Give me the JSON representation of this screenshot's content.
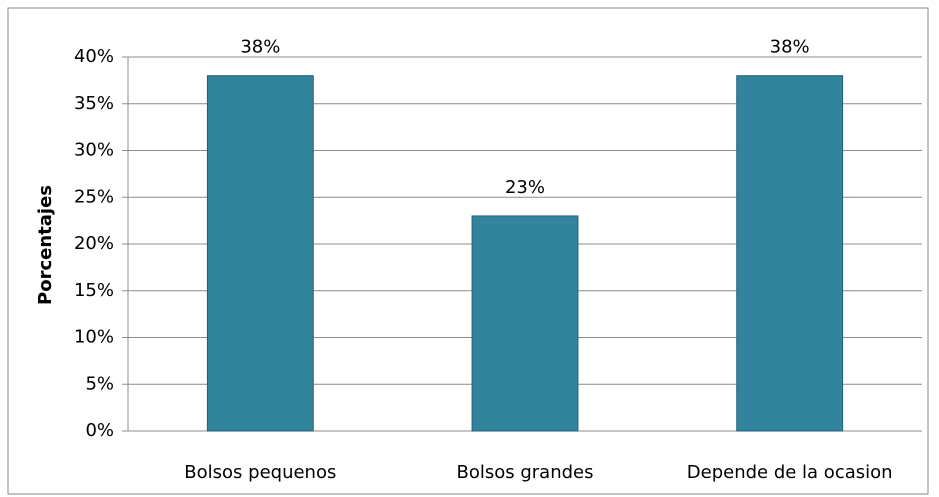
{
  "chart_data": {
    "type": "bar",
    "y_label": "Porcentajes",
    "categories": [
      "Bolsos pequenos",
      "Bolsos grandes",
      "Depende de la ocasion"
    ],
    "values": [
      38,
      23,
      38
    ],
    "value_labels": [
      "38%",
      "23%",
      "38%"
    ],
    "color": "#31849b",
    "ylim": [
      0,
      40
    ],
    "yticks": [
      {
        "value": 0,
        "label": "0%"
      },
      {
        "value": 5,
        "label": "5%"
      },
      {
        "value": 10,
        "label": "10%"
      },
      {
        "value": 15,
        "label": "15%"
      },
      {
        "value": 20,
        "label": "20%"
      },
      {
        "value": 25,
        "label": "25%"
      },
      {
        "value": 30,
        "label": "30%"
      },
      {
        "value": 35,
        "label": "35%"
      },
      {
        "value": 40,
        "label": "40%"
      }
    ],
    "grid": true
  }
}
